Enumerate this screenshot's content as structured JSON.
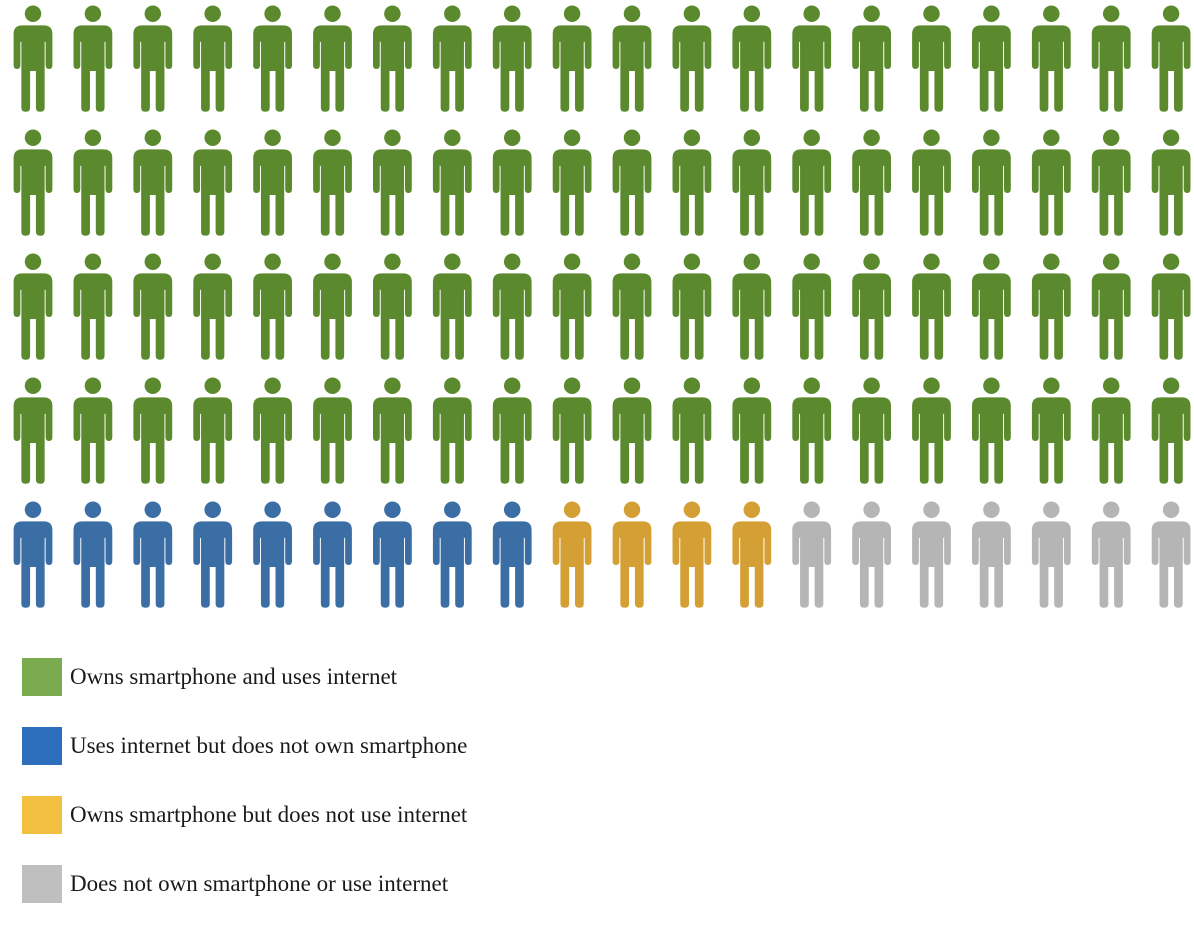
{
  "chart_data": {
    "type": "pictograph",
    "icon": "person-icon",
    "total": 100,
    "rows": 5,
    "columns": 20,
    "series": [
      {
        "name": "Owns smartphone and uses internet",
        "count": 80,
        "icon_color": "#5b8a2e",
        "legend_color": "#7aab4f"
      },
      {
        "name": "Uses internet but does not own smartphone",
        "count": 9,
        "icon_color": "#3a6ea5",
        "legend_color": "#2e6fbd"
      },
      {
        "name": "Owns smartphone but does not use internet",
        "count": 4,
        "icon_color": "#d4a035",
        "legend_color": "#f2bf40"
      },
      {
        "name": "Does not own smartphone or use internet",
        "count": 7,
        "icon_color": "#b5b5b5",
        "legend_color": "#bfbfbf"
      }
    ],
    "legend_position": "bottom-left"
  }
}
